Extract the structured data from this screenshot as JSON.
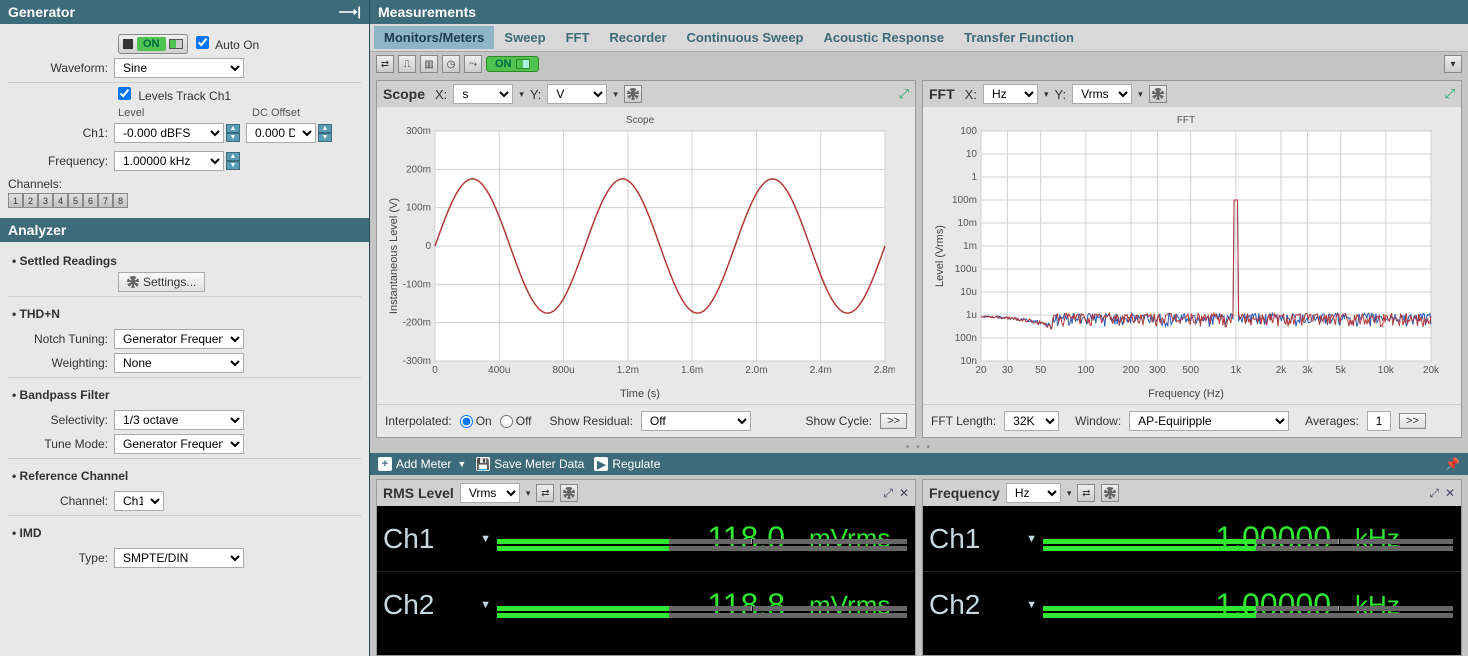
{
  "generator": {
    "title": "Generator",
    "auto_on_label": "Auto On",
    "auto_on": true,
    "on_label": "ON",
    "waveform_label": "Waveform:",
    "waveform_value": "Sine",
    "levels_track_label": "Levels Track Ch1",
    "levels_track": true,
    "level_col": "Level",
    "dc_offset_col": "DC Offset",
    "ch1_label": "Ch1:",
    "ch1_level_value": "-0.000 dBFS",
    "ch1_dc_value": "0.000 D",
    "frequency_label": "Frequency:",
    "frequency_value": "1.00000 kHz",
    "channels_label": "Channels:",
    "channels": [
      "1",
      "2",
      "3",
      "4",
      "5",
      "6",
      "7",
      "8"
    ]
  },
  "analyzer": {
    "title": "Analyzer",
    "settled_readings": "Settled Readings",
    "settings_label": "Settings...",
    "thdn": "THD+N",
    "notch_tuning_label": "Notch Tuning:",
    "notch_tuning_value": "Generator Frequency",
    "weighting_label": "Weighting:",
    "weighting_value": "None",
    "bandpass": "Bandpass Filter",
    "selectivity_label": "Selectivity:",
    "selectivity_value": "1/3 octave",
    "tune_mode_label": "Tune Mode:",
    "tune_mode_value": "Generator Frequency",
    "ref_channel": "Reference Channel",
    "channel_label": "Channel:",
    "channel_value": "Ch1",
    "imd": "IMD",
    "type_label": "Type:",
    "type_value": "SMPTE/DIN"
  },
  "measurements": {
    "title": "Measurements",
    "tabs": [
      "Monitors/Meters",
      "Sweep",
      "FFT",
      "Recorder",
      "Continuous Sweep",
      "Acoustic Response",
      "Transfer Function"
    ],
    "active_tab": 0,
    "on_label": "ON"
  },
  "scope": {
    "title": "Scope",
    "x_label": "X:",
    "x_unit": "s",
    "y_label": "Y:",
    "y_unit": "V",
    "chart_title": "Scope",
    "y_axis_title": "Instantaneous Level (V)",
    "x_axis_title": "Time (s)",
    "y_ticks": [
      "300m",
      "200m",
      "100m",
      "0",
      "-100m",
      "-200m",
      "-300m"
    ],
    "x_ticks": [
      "0",
      "400u",
      "800u",
      "1.2m",
      "1.6m",
      "2.0m",
      "2.4m",
      "2.8m"
    ],
    "amplitude": 0.175,
    "ylim": [
      -0.3,
      0.3
    ],
    "periods": 3,
    "xend": 0.003,
    "line_color": "#b33a3a",
    "grid_color": "#d0d0d0",
    "interpolated_label": "Interpolated:",
    "interp_on": "On",
    "interp_off": "Off",
    "interp_val": "on",
    "show_residual_label": "Show Residual:",
    "show_residual_value": "Off",
    "show_cycle_label": "Show Cycle:",
    "cycle_btn": ">>"
  },
  "fft": {
    "title": "FFT",
    "x_label": "X:",
    "x_unit": "Hz",
    "y_label": "Y:",
    "y_unit": "Vrms",
    "chart_title": "FFT",
    "y_axis_title": "Level (Vrms)",
    "x_axis_title": "Frequency (Hz)",
    "y_ticks": [
      "100",
      "10",
      "1",
      "100m",
      "10m",
      "1m",
      "100u",
      "10u",
      "1u",
      "100n",
      "10n"
    ],
    "x_ticks": [
      "20",
      "30",
      "50",
      "100",
      "200",
      "300",
      "500",
      "1k",
      "2k",
      "3k",
      "5k",
      "10k",
      "20k"
    ],
    "series_colors": [
      "#b33a3a",
      "#2a5ab3"
    ],
    "grid_color": "#d0d0d0",
    "length_label": "FFT Length:",
    "length_value": "32K",
    "window_label": "Window:",
    "window_value": "AP-Equiripple",
    "averages_label": "Averages:",
    "averages_value": "1",
    "go_btn": ">>"
  },
  "meter_bar": {
    "add_meter": "Add Meter",
    "save_data": "Save Meter Data",
    "regulate": "Regulate"
  },
  "rms": {
    "title": "RMS Level",
    "unit": "Vrms",
    "channels": [
      {
        "name": "Ch1",
        "value": "118.0",
        "unit": "mVrms",
        "bar_pct": 42
      },
      {
        "name": "Ch2",
        "value": "118.8",
        "unit": "mVrms",
        "bar_pct": 42
      }
    ]
  },
  "freq": {
    "title": "Frequency",
    "unit": "Hz",
    "channels": [
      {
        "name": "Ch1",
        "value": "1.00000",
        "unit": "kHz",
        "bar_pct": 52
      },
      {
        "name": "Ch2",
        "value": "1.00000",
        "unit": "kHz",
        "bar_pct": 52
      }
    ]
  },
  "colors": {
    "panel_teal": "#3d6b7a",
    "meter_green": "#2fe82f"
  }
}
